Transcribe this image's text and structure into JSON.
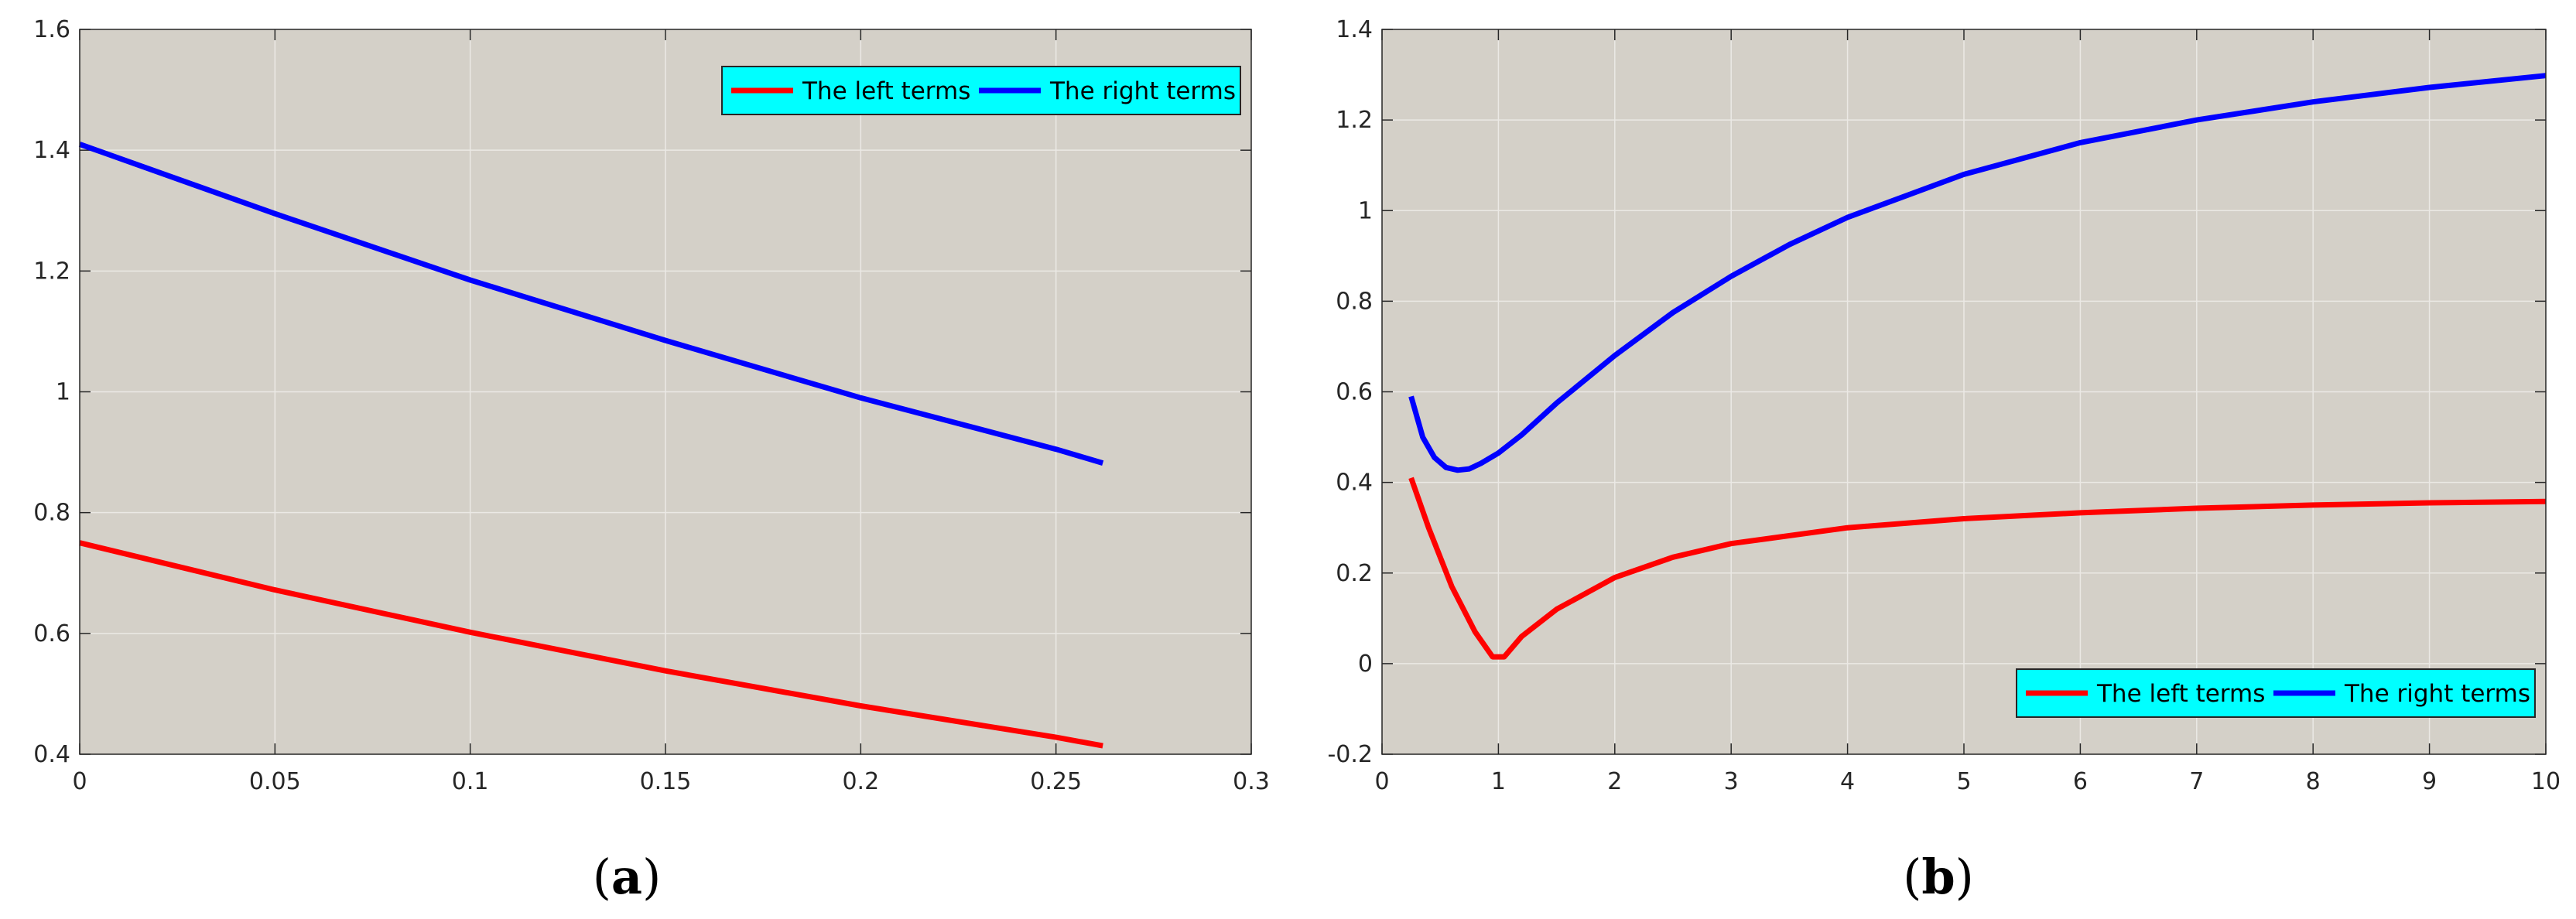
{
  "chart_data": [
    {
      "type": "line",
      "panel_label": {
        "open": "(",
        "letter": "a",
        "close": ")"
      },
      "xlim": [
        0,
        0.3
      ],
      "ylim": [
        0.4,
        1.6
      ],
      "xticks": [
        0,
        0.05,
        0.1,
        0.15,
        0.2,
        0.25,
        0.3
      ],
      "xtick_labels": [
        "0",
        "0.05",
        "0.1",
        "0.15",
        "0.2",
        "0.25",
        "0.3"
      ],
      "yticks": [
        0.4,
        0.6,
        0.8,
        1.0,
        1.2,
        1.4,
        1.6
      ],
      "ytick_labels": [
        "0.4",
        "0.6",
        "0.8",
        "1",
        "1.2",
        "1.4",
        "1.6"
      ],
      "grid": true,
      "legend_position": "top-right",
      "legend_orientation": "horizontal",
      "background": "#d4d0c8",
      "legend_background": "#00ffff",
      "series": [
        {
          "name": "The left terms",
          "color": "#ff0000",
          "x": [
            0,
            0.05,
            0.1,
            0.15,
            0.2,
            0.25,
            0.262
          ],
          "y": [
            0.75,
            0.672,
            0.602,
            0.538,
            0.48,
            0.428,
            0.414
          ]
        },
        {
          "name": "The right terms",
          "color": "#0000ff",
          "x": [
            0,
            0.05,
            0.1,
            0.15,
            0.2,
            0.25,
            0.262
          ],
          "y": [
            1.41,
            1.295,
            1.185,
            1.085,
            0.99,
            0.905,
            0.882
          ]
        }
      ]
    },
    {
      "type": "line",
      "panel_label": {
        "open": "(",
        "letter": "b",
        "close": ")"
      },
      "xlim": [
        0,
        10
      ],
      "ylim": [
        -0.2,
        1.4
      ],
      "xticks": [
        0,
        1,
        2,
        3,
        4,
        5,
        6,
        7,
        8,
        9,
        10
      ],
      "xtick_labels": [
        "0",
        "1",
        "2",
        "3",
        "4",
        "5",
        "6",
        "7",
        "8",
        "9",
        "10"
      ],
      "yticks": [
        -0.2,
        0,
        0.2,
        0.4,
        0.6,
        0.8,
        1.0,
        1.2,
        1.4
      ],
      "ytick_labels": [
        "-0.2",
        "0",
        "0.2",
        "0.4",
        "0.6",
        "0.8",
        "1",
        "1.2",
        "1.4"
      ],
      "grid": true,
      "legend_position": "bottom-right",
      "legend_orientation": "horizontal",
      "background": "#d4d0c8",
      "legend_background": "#00ffff",
      "series": [
        {
          "name": "The left terms",
          "color": "#ff0000",
          "x": [
            0.25,
            0.4,
            0.6,
            0.8,
            0.95,
            1.05,
            1.2,
            1.5,
            2,
            2.5,
            3,
            4,
            5,
            6,
            7,
            8,
            9,
            10
          ],
          "y": [
            0.41,
            0.3,
            0.17,
            0.07,
            0.015,
            0.015,
            0.06,
            0.12,
            0.19,
            0.235,
            0.265,
            0.3,
            0.32,
            0.333,
            0.343,
            0.35,
            0.355,
            0.358
          ]
        },
        {
          "name": "The right terms",
          "color": "#0000ff",
          "x": [
            0.25,
            0.35,
            0.45,
            0.55,
            0.65,
            0.75,
            0.85,
            1.0,
            1.2,
            1.5,
            2,
            2.5,
            3,
            3.5,
            4,
            5,
            6,
            7,
            8,
            9,
            10
          ],
          "y": [
            0.59,
            0.5,
            0.455,
            0.433,
            0.427,
            0.43,
            0.442,
            0.465,
            0.505,
            0.575,
            0.68,
            0.775,
            0.855,
            0.925,
            0.985,
            1.08,
            1.15,
            1.2,
            1.24,
            1.272,
            1.298
          ]
        }
      ]
    }
  ]
}
